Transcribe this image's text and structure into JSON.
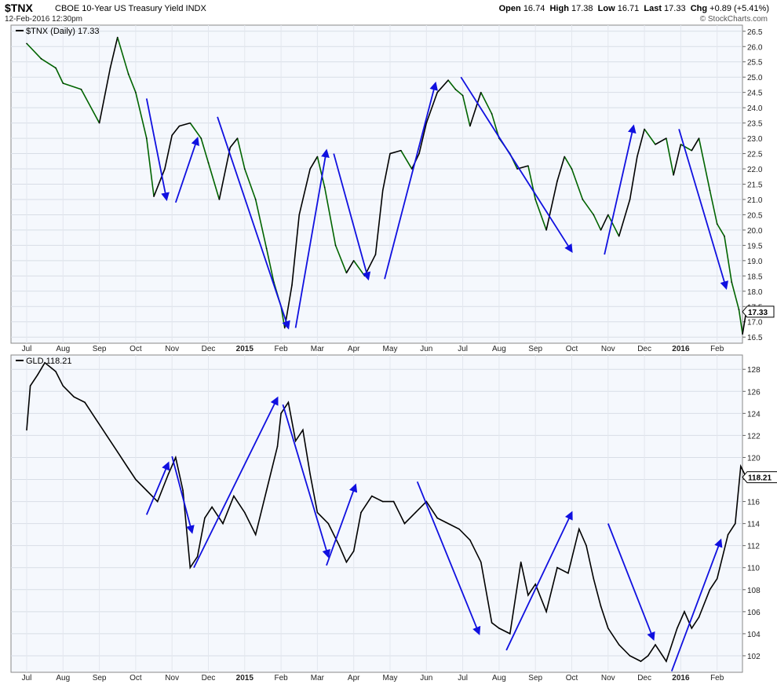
{
  "header": {
    "symbol": "$TNX",
    "description": "CBOE 10-Year US Treasury Yield",
    "exchange": "INDX",
    "datetime": "12-Feb-2016 12:30pm",
    "open_label": "Open",
    "open": "16.74",
    "high_label": "High",
    "high": "17.38",
    "low_label": "Low",
    "low": "16.71",
    "last_label": "Last",
    "last": "17.33",
    "chg_label": "Chg",
    "chg": "+0.89 (+5.41%)",
    "copyright": "© StockCharts.com"
  },
  "chart_data": [
    {
      "type": "line",
      "legend": "$TNX (Daily) 17.33",
      "last_value_label": "17.33",
      "ylim": [
        16.3,
        26.7
      ],
      "y_ticks": [
        "16.5",
        "17.0",
        "17.5",
        "18.0",
        "18.5",
        "19.0",
        "19.5",
        "20.0",
        "20.5",
        "21.0",
        "21.5",
        "22.0",
        "22.5",
        "23.0",
        "23.5",
        "24.0",
        "24.5",
        "25.0",
        "25.5",
        "26.0",
        "26.5"
      ],
      "x_ticks": [
        "Jul",
        "Aug",
        "Sep",
        "Oct",
        "Nov",
        "Dec",
        "2015",
        "Feb",
        "Mar",
        "Apr",
        "May",
        "Jun",
        "Jul",
        "Aug",
        "Sep",
        "Oct",
        "Nov",
        "Dec",
        "2016",
        "Feb"
      ],
      "x_range": [
        0,
        19.9
      ],
      "colors": {
        "up": "#006400",
        "down": "#000000",
        "arrow": "#1010e0"
      },
      "series": [
        {
          "x": [
            0,
            0.4,
            0.8,
            1.0,
            1.5,
            2.0,
            2.3,
            2.5,
            2.8,
            3.0,
            3.3,
            3.5,
            3.8,
            4.0,
            4.2,
            4.5,
            4.8,
            5.0,
            5.3,
            5.6,
            5.8,
            6.0,
            6.3,
            6.6,
            6.8,
            7.0,
            7.1,
            7.3,
            7.5,
            7.8,
            8.0,
            8.2,
            8.5,
            8.8,
            9.0,
            9.3,
            9.6,
            9.8,
            10.0,
            10.3,
            10.6,
            10.8,
            11.0,
            11.3,
            11.6,
            11.8,
            12.0,
            12.2,
            12.5,
            12.8,
            13.0,
            13.3,
            13.5,
            13.8,
            14.0,
            14.3,
            14.6,
            14.8,
            15.0,
            15.3,
            15.6,
            15.8,
            16.0,
            16.3,
            16.6,
            16.8,
            17.0,
            17.3,
            17.6,
            17.8,
            18.0,
            18.3,
            18.5,
            18.8,
            19.0,
            19.2,
            19.4,
            19.6,
            19.7,
            19.8
          ],
          "y": [
            26.1,
            25.6,
            25.3,
            24.8,
            24.6,
            23.5,
            25.3,
            26.3,
            25.1,
            24.5,
            23.0,
            21.1,
            22.0,
            23.1,
            23.4,
            23.5,
            23.0,
            22.2,
            21.0,
            22.7,
            23.0,
            22.0,
            21.0,
            19.4,
            18.3,
            17.5,
            16.8,
            18.2,
            20.5,
            22.0,
            22.4,
            21.4,
            19.5,
            18.6,
            19.0,
            18.5,
            19.2,
            21.3,
            22.5,
            22.6,
            22.0,
            22.5,
            23.5,
            24.5,
            24.9,
            24.6,
            24.4,
            23.4,
            24.5,
            23.8,
            23.0,
            22.5,
            22.0,
            22.1,
            21.0,
            20.0,
            21.6,
            22.4,
            22.0,
            21.0,
            20.5,
            20.0,
            20.5,
            19.8,
            21.0,
            22.4,
            23.3,
            22.8,
            23.0,
            21.8,
            22.8,
            22.6,
            23.0,
            21.3,
            20.2,
            19.8,
            18.3,
            17.4,
            16.6,
            17.33
          ]
        }
      ],
      "trend_arrows": [
        {
          "from": [
            3.3,
            24.3
          ],
          "to": [
            3.85,
            21.0
          ]
        },
        {
          "from": [
            4.1,
            20.9
          ],
          "to": [
            4.7,
            23.0
          ]
        },
        {
          "from": [
            5.25,
            23.7
          ],
          "to": [
            7.2,
            16.8
          ]
        },
        {
          "from": [
            7.4,
            16.8
          ],
          "to": [
            8.25,
            22.6
          ]
        },
        {
          "from": [
            8.45,
            22.5
          ],
          "to": [
            9.4,
            18.4
          ]
        },
        {
          "from": [
            9.85,
            18.4
          ],
          "to": [
            11.25,
            24.8
          ]
        },
        {
          "from": [
            11.95,
            25.0
          ],
          "to": [
            15.0,
            19.3
          ]
        },
        {
          "from": [
            15.9,
            19.2
          ],
          "to": [
            16.7,
            23.4
          ]
        },
        {
          "from": [
            17.95,
            23.3
          ],
          "to": [
            19.25,
            18.1
          ]
        }
      ]
    },
    {
      "type": "line",
      "legend": "GLD 118.21",
      "last_value_label": "118.21",
      "ylim": [
        100.5,
        129.3
      ],
      "y_ticks": [
        "102",
        "104",
        "106",
        "108",
        "110",
        "112",
        "114",
        "116",
        "118",
        "120",
        "122",
        "124",
        "126",
        "128"
      ],
      "x_ticks": [
        "Jul",
        "Aug",
        "Sep",
        "Oct",
        "Nov",
        "Dec",
        "2015",
        "Feb",
        "Mar",
        "Apr",
        "May",
        "Jun",
        "Jul",
        "Aug",
        "Sep",
        "Oct",
        "Nov",
        "Dec",
        "2016",
        "Feb"
      ],
      "x_range": [
        0,
        19.9
      ],
      "colors": {
        "line": "#000000",
        "arrow": "#1010e0"
      },
      "series": [
        {
          "x": [
            0,
            0.1,
            0.3,
            0.5,
            0.8,
            1.0,
            1.3,
            1.6,
            1.9,
            2.2,
            2.5,
            2.8,
            3.0,
            3.3,
            3.6,
            3.9,
            4.1,
            4.3,
            4.5,
            4.7,
            4.9,
            5.1,
            5.4,
            5.7,
            6.0,
            6.3,
            6.6,
            6.9,
            7.0,
            7.2,
            7.4,
            7.6,
            7.8,
            8.0,
            8.3,
            8.6,
            8.8,
            9.0,
            9.2,
            9.5,
            9.8,
            10.1,
            10.4,
            10.7,
            11.0,
            11.3,
            11.6,
            11.9,
            12.2,
            12.5,
            12.8,
            13.0,
            13.3,
            13.6,
            13.8,
            14.0,
            14.3,
            14.6,
            14.9,
            15.2,
            15.4,
            15.6,
            15.8,
            16.0,
            16.3,
            16.6,
            16.9,
            17.1,
            17.3,
            17.6,
            17.9,
            18.1,
            18.3,
            18.5,
            18.8,
            19.0,
            19.3,
            19.5,
            19.65,
            19.8
          ],
          "y": [
            122.5,
            126.5,
            127.5,
            128.6,
            127.8,
            126.5,
            125.5,
            125.0,
            123.5,
            122.0,
            120.5,
            119.0,
            118.0,
            117.0,
            116.0,
            118.5,
            120.0,
            117.0,
            110.0,
            111.0,
            114.5,
            115.5,
            114.0,
            116.5,
            115.0,
            113.0,
            117.0,
            121.0,
            124.0,
            125.0,
            121.5,
            122.5,
            118.5,
            115.0,
            114.0,
            112.0,
            110.5,
            111.5,
            115.0,
            116.5,
            116.0,
            116.0,
            114.0,
            115.0,
            116.0,
            114.5,
            114.0,
            113.5,
            112.5,
            110.5,
            105.0,
            104.5,
            104.0,
            110.5,
            107.5,
            108.5,
            106.0,
            110.0,
            109.5,
            113.5,
            112.0,
            109.0,
            106.5,
            104.5,
            103.0,
            102.0,
            101.5,
            102.0,
            103.0,
            101.5,
            104.5,
            106.0,
            104.5,
            105.5,
            108.0,
            109.0,
            113.0,
            114.0,
            119.2,
            118.21
          ]
        }
      ],
      "trend_arrows": [
        {
          "from": [
            3.3,
            114.8
          ],
          "to": [
            3.9,
            119.5
          ]
        },
        {
          "from": [
            4.0,
            120.1
          ],
          "to": [
            4.55,
            113.2
          ]
        },
        {
          "from": [
            4.6,
            110.0
          ],
          "to": [
            6.9,
            125.4
          ]
        },
        {
          "from": [
            7.05,
            124.8
          ],
          "to": [
            8.3,
            111.0
          ]
        },
        {
          "from": [
            8.25,
            110.2
          ],
          "to": [
            9.05,
            117.5
          ]
        },
        {
          "from": [
            10.75,
            117.8
          ],
          "to": [
            12.45,
            104.0
          ]
        },
        {
          "from": [
            13.2,
            102.5
          ],
          "to": [
            15.0,
            115.0
          ]
        },
        {
          "from": [
            16.0,
            114.0
          ],
          "to": [
            17.25,
            103.5
          ]
        },
        {
          "from": [
            17.75,
            100.6
          ],
          "to": [
            19.1,
            112.5
          ]
        }
      ]
    }
  ]
}
